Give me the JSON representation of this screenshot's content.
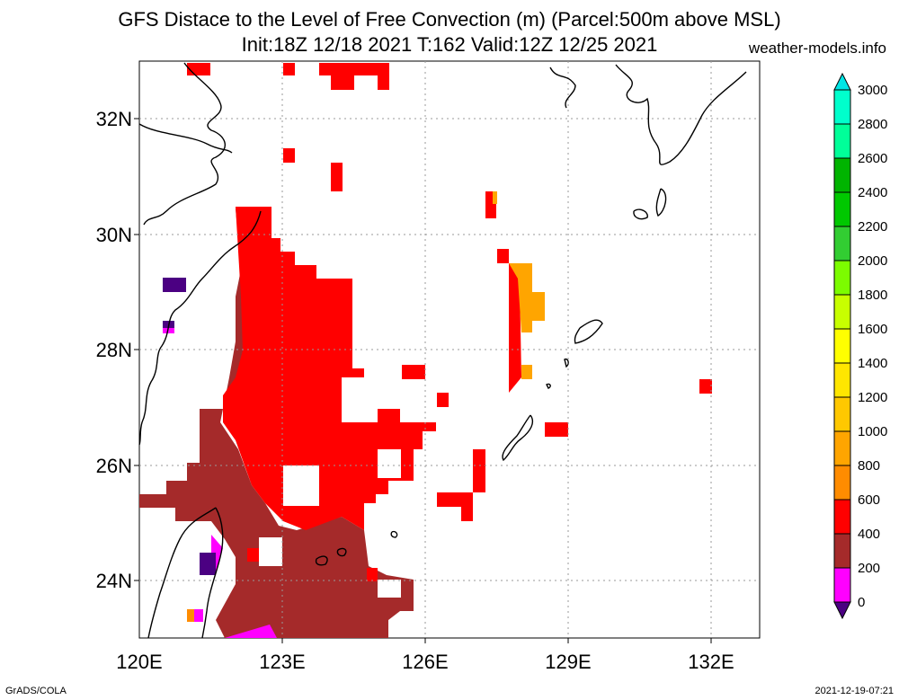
{
  "header": {
    "title": "GFS Distace to the Level of Free Convection (m) (Parcel:500m above MSL)",
    "subtitle": "Init:18Z 12/18 2021 T:162 Valid:12Z 12/25 2021",
    "site": "weather-models.info"
  },
  "footer": {
    "software": "GrADS/COLA",
    "timestamp": "2021-12-19-07:21"
  },
  "map": {
    "lon_range": [
      120,
      133
    ],
    "lat_range": [
      23,
      33
    ],
    "lat_ticks": [
      "24N",
      "26N",
      "28N",
      "30N",
      "32N"
    ],
    "lon_ticks": [
      "120E",
      "123E",
      "126E",
      "129E",
      "132E"
    ],
    "grid": "dotted"
  },
  "legend": {
    "labels": [
      "0",
      "200",
      "400",
      "600",
      "800",
      "1000",
      "1200",
      "1400",
      "1600",
      "1800",
      "2000",
      "2200",
      "2400",
      "2600",
      "2800",
      "3000"
    ],
    "colors": [
      "#4b0082",
      "#ff00ff",
      "#a52a2a",
      "#ff0000",
      "#ff8c00",
      "#ffa500",
      "#ffc800",
      "#ffe600",
      "#ffff00",
      "#c8ff00",
      "#7cfc00",
      "#32cd32",
      "#00c800",
      "#00b400",
      "#00ff99",
      "#00ffcc",
      "#00e5e5"
    ]
  }
}
